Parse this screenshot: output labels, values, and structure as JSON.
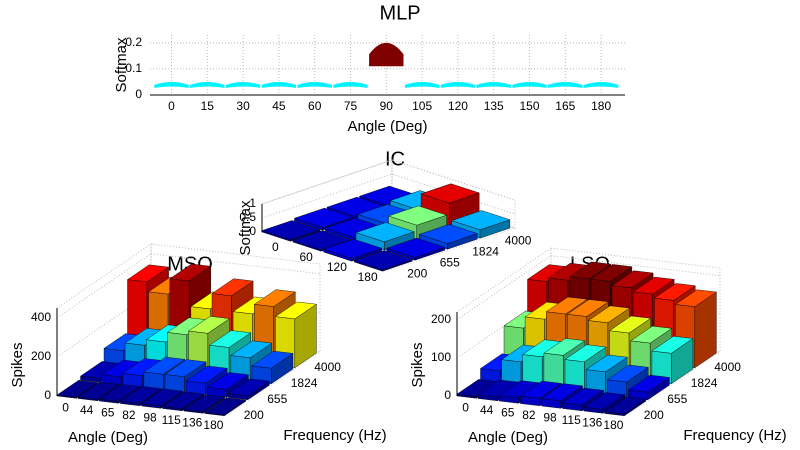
{
  "chart_data": [
    {
      "type": "hump",
      "title": "MLP",
      "xlabel": "Angle (Deg)",
      "ylabel": "Softmax",
      "x": [
        0,
        15,
        30,
        45,
        60,
        75,
        90,
        105,
        120,
        135,
        150,
        165,
        180
      ],
      "values": [
        0.05,
        0.05,
        0.05,
        0.05,
        0.05,
        0.05,
        0.2,
        0.05,
        0.05,
        0.05,
        0.05,
        0.05,
        0.05
      ],
      "xlim": [
        -9,
        190
      ],
      "ylim": [
        0,
        0.23
      ],
      "xticks": [
        0,
        15,
        30,
        45,
        60,
        75,
        90,
        105,
        120,
        135,
        150,
        165,
        180
      ],
      "yticks": [
        0,
        0.1,
        0.2
      ],
      "grid": true
    },
    {
      "type": "bar3d",
      "title": "IC",
      "zlabel": "Softmax",
      "categories": [
        0,
        60,
        120,
        180
      ],
      "depth_categories": [
        200,
        655,
        1824,
        4000
      ],
      "values": [
        [
          0.05,
          0.05,
          0.1,
          0.05
        ],
        [
          0.1,
          0.1,
          0.3,
          0.1
        ],
        [
          0.1,
          0.2,
          0.5,
          0.2
        ],
        [
          0.1,
          0.3,
          0.9,
          0.3
        ]
      ],
      "zlim": [
        0,
        1
      ],
      "zticks": [
        0,
        0.5,
        1
      ]
    },
    {
      "type": "bar3d",
      "title": "MSO",
      "xlabel": "Angle (Deg)",
      "ylabel": "Frequency (Hz)",
      "zlabel": "Spikes",
      "categories": [
        0,
        44,
        65,
        82,
        98,
        115,
        136,
        180
      ],
      "depth_categories": [
        200,
        655,
        1824,
        4000
      ],
      "values": [
        [
          5,
          8,
          10,
          12,
          12,
          10,
          8,
          5
        ],
        [
          20,
          40,
          60,
          80,
          80,
          60,
          40,
          20
        ],
        [
          80,
          120,
          150,
          200,
          220,
          160,
          120,
          80
        ],
        [
          350,
          300,
          380,
          250,
          330,
          250,
          300,
          250
        ]
      ],
      "zlim": [
        0,
        450
      ],
      "zticks": [
        0,
        200,
        400
      ]
    },
    {
      "type": "bar3d",
      "title": "LSO",
      "xlabel": "Angle (Deg)",
      "ylabel": "Frequency (Hz)",
      "zlabel": "Spikes",
      "categories": [
        0,
        44,
        65,
        82,
        98,
        115,
        136,
        180
      ],
      "depth_categories": [
        200,
        655,
        1824,
        4000
      ],
      "values": [
        [
          5,
          10,
          15,
          20,
          20,
          15,
          10,
          5
        ],
        [
          30,
          60,
          80,
          90,
          80,
          60,
          40,
          20
        ],
        [
          100,
          130,
          150,
          150,
          140,
          120,
          100,
          80
        ],
        [
          180,
          190,
          200,
          200,
          190,
          180,
          170,
          160
        ]
      ],
      "zlim": [
        0,
        220
      ],
      "zticks": [
        0,
        100,
        200
      ]
    }
  ]
}
